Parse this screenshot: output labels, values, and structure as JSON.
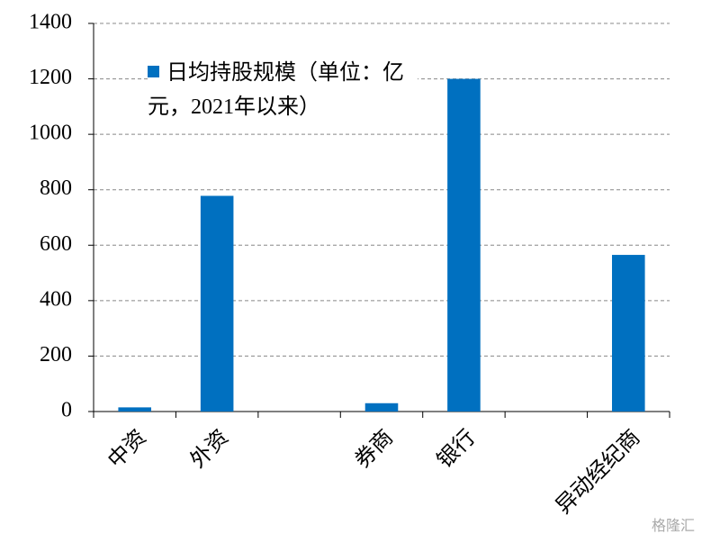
{
  "chart_data": {
    "type": "bar",
    "categories": [
      "中资",
      "外资",
      null,
      "券商",
      "银行",
      null,
      "异动经纪商"
    ],
    "series": [
      {
        "name": "日均持股规模（单位：亿元，2021年以来）",
        "color": "#0070c0",
        "values": [
          15,
          778,
          null,
          30,
          1200,
          null,
          565
        ]
      }
    ],
    "ylim": [
      0,
      1400
    ],
    "yticks": [
      0,
      200,
      400,
      600,
      800,
      1000,
      1200,
      1400
    ],
    "grid": true,
    "legend": "upper-left",
    "watermark": "格隆汇"
  }
}
